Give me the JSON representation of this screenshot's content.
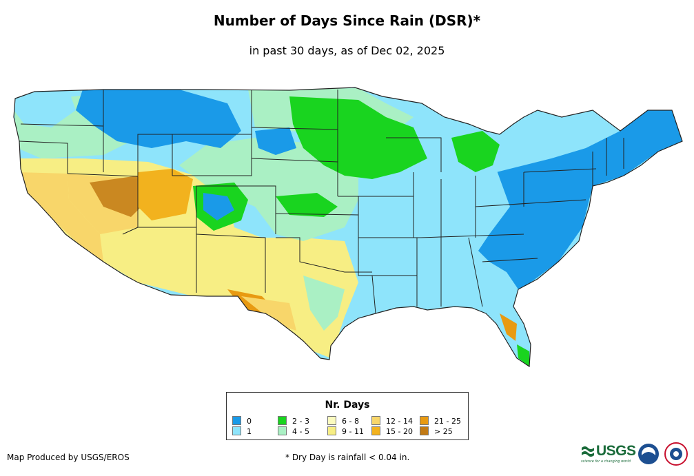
{
  "title": "Number of Days Since Rain (DSR)*",
  "subtitle": "in past 30 days, as of Dec 02, 2025",
  "legend": {
    "title": "Nr. Days",
    "items": [
      {
        "label": "0",
        "color": "#1a9ae8"
      },
      {
        "label": "1",
        "color": "#8ee4fb"
      },
      {
        "label": "2 - 3",
        "color": "#19d41f"
      },
      {
        "label": "4 - 5",
        "color": "#aaf0c4"
      },
      {
        "label": "6 - 8",
        "color": "#fbfbbf"
      },
      {
        "label": "9 - 11",
        "color": "#f7ee84"
      },
      {
        "label": "12 - 14",
        "color": "#f8d66a"
      },
      {
        "label": "15 - 20",
        "color": "#f2b21e"
      },
      {
        "label": "21 - 25",
        "color": "#e89a12"
      },
      {
        "label": "> 25",
        "color": "#c27a14"
      }
    ]
  },
  "footer": {
    "credit": "Map Produced by USGS/EROS",
    "note": "* Dry Day is rainfall < 0.04 in."
  },
  "logos": {
    "usgs": "USGS",
    "usgs_tagline": "science for a changing world",
    "noaa_icon": "noaa-logo",
    "nws_icon": "nws-logo"
  }
}
